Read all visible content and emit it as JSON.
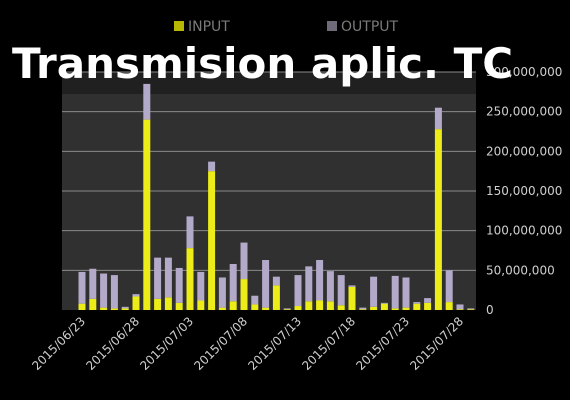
{
  "title": "Transmision aplic. TC",
  "colors": {
    "input": "#ecec18",
    "output": "#b3a9c9",
    "plot_bg": "#303030",
    "gridline": "#8a8a8a",
    "text": "#cfcfcf",
    "legend_text": "#7a7a7a"
  },
  "chart_data": {
    "type": "bar",
    "stacked": true,
    "legend_position": "top",
    "grid": true,
    "ylim": [
      0,
      300000000
    ],
    "yticks": [
      "0",
      "50,000,000",
      "100,000,000",
      "150,000,000",
      "200,000,000",
      "250,000,000",
      "300,000,000"
    ],
    "xtick_labels": [
      "2015/06/23",
      "2015/06/28",
      "2015/07/03",
      "2015/07/08",
      "2015/07/13",
      "2015/07/18",
      "2015/07/23",
      "2015/07/28"
    ],
    "categories": [
      "2015/06/23",
      "2015/06/24",
      "2015/06/25",
      "2015/06/26",
      "2015/06/27",
      "2015/06/28",
      "2015/06/29",
      "2015/06/30",
      "2015/07/01",
      "2015/07/02",
      "2015/07/03",
      "2015/07/04",
      "2015/07/05",
      "2015/07/06",
      "2015/07/07",
      "2015/07/08",
      "2015/07/09",
      "2015/07/10",
      "2015/07/11",
      "2015/07/12",
      "2015/07/13",
      "2015/07/14",
      "2015/07/15",
      "2015/07/16",
      "2015/07/17",
      "2015/07/18",
      "2015/07/19",
      "2015/07/20",
      "2015/07/21",
      "2015/07/22",
      "2015/07/23",
      "2015/07/24",
      "2015/07/25",
      "2015/07/26",
      "2015/07/27",
      "2015/07/28",
      "2015/07/29"
    ],
    "series": [
      {
        "name": "INPUT",
        "values": [
          8000000,
          14000000,
          3000000,
          2000000,
          2000000,
          17000000,
          240000000,
          14000000,
          16000000,
          9000000,
          78000000,
          12000000,
          175000000,
          3000000,
          11000000,
          39000000,
          7000000,
          3000000,
          31000000,
          1000000,
          5000000,
          11000000,
          12000000,
          11000000,
          6000000,
          29000000,
          1000000,
          4000000,
          8000000,
          2000000,
          3000000,
          8000000,
          9000000,
          228000000,
          10000000,
          1000000,
          1000000
        ]
      },
      {
        "name": "OUTPUT",
        "values": [
          40000000,
          38000000,
          43000000,
          42000000,
          2000000,
          3000000,
          45000000,
          52000000,
          50000000,
          44000000,
          40000000,
          36000000,
          12000000,
          38000000,
          47000000,
          46000000,
          11000000,
          60000000,
          11000000,
          1000000,
          39000000,
          44000000,
          51000000,
          38000000,
          38000000,
          2000000,
          2000000,
          38000000,
          1000000,
          41000000,
          38000000,
          2000000,
          6000000,
          27000000,
          40000000,
          6000000,
          1000000
        ]
      }
    ]
  }
}
